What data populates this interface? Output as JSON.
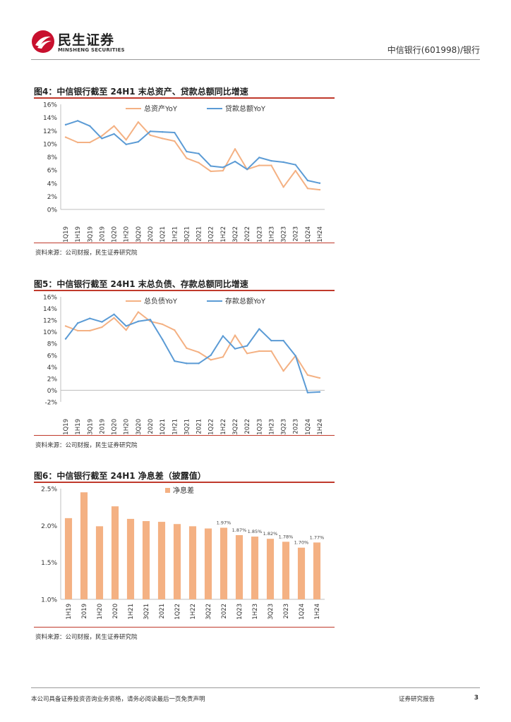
{
  "header": {
    "logo_cn": "民生证券",
    "logo_en": "MINSHENG SECURITIES",
    "report_name": "中信银行(601998)/银行"
  },
  "colors": {
    "orange": "#f4b183",
    "blue": "#5b9bd5",
    "bar": "#f4b183",
    "rule": "#c0392b"
  },
  "figures": [
    {
      "title": "图4：中信银行截至 24H1 末总资产、贷款总额同比增速",
      "source": "资料来源：公司财报，民生证券研究院"
    },
    {
      "title": "图5：中信银行截至 24H1 末总负债、存款总额同比增速",
      "source": "资料来源：公司财报，民生证券研究院"
    },
    {
      "title": "图6：中信银行截至 24H1 净息差（披露值）",
      "source": "资料来源：公司财报，民生证券研究院"
    }
  ],
  "chart_data": [
    {
      "type": "line",
      "title": "图4：中信银行截至 24H1 末总资产、贷款总额同比增速",
      "categories": [
        "1Q19",
        "1H19",
        "3Q19",
        "2019",
        "1Q20",
        "1H20",
        "3Q20",
        "2020",
        "1Q21",
        "1H21",
        "3Q21",
        "2021",
        "1Q22",
        "1H22",
        "3Q22",
        "2022",
        "1Q23",
        "1H23",
        "3Q23",
        "2023",
        "1Q24",
        "1H24"
      ],
      "y_ticks": [
        "0%",
        "2%",
        "4%",
        "6%",
        "8%",
        "10%",
        "12%",
        "14%",
        "16%"
      ],
      "ylim": [
        0,
        16
      ],
      "legend_position": "top",
      "series": [
        {
          "name": "总资产YoY",
          "color": "#f4b183",
          "values": [
            11.0,
            10.2,
            10.2,
            11.2,
            12.7,
            10.6,
            13.3,
            11.3,
            10.8,
            10.4,
            7.8,
            7.1,
            5.8,
            5.9,
            9.2,
            6.1,
            6.7,
            6.7,
            3.4,
            5.9,
            3.2,
            3.0
          ]
        },
        {
          "name": "贷款总额YoY",
          "color": "#5b9bd5",
          "values": [
            12.9,
            13.5,
            12.7,
            10.8,
            11.5,
            9.9,
            10.3,
            11.9,
            11.8,
            11.7,
            8.8,
            8.5,
            6.6,
            6.4,
            7.3,
            6.1,
            7.9,
            7.4,
            7.2,
            6.8,
            4.4,
            4.0
          ]
        }
      ]
    },
    {
      "type": "line",
      "title": "图5：中信银行截至 24H1 末总负债、存款总额同比增速",
      "categories": [
        "1Q19",
        "1H19",
        "3Q19",
        "2019",
        "1Q20",
        "1H20",
        "3Q20",
        "2020",
        "1Q21",
        "1H21",
        "3Q21",
        "2021",
        "1Q22",
        "1H22",
        "3Q22",
        "2022",
        "1Q23",
        "1H23",
        "3Q23",
        "2023",
        "1Q24",
        "1H24"
      ],
      "y_ticks": [
        "-2%",
        "0%",
        "2%",
        "4%",
        "6%",
        "8%",
        "10%",
        "12%",
        "14%",
        "16%"
      ],
      "ylim": [
        -2,
        16
      ],
      "legend_position": "top",
      "series": [
        {
          "name": "总负债YoY",
          "color": "#f4b183",
          "values": [
            11.0,
            10.2,
            10.2,
            10.8,
            12.4,
            10.3,
            13.4,
            11.8,
            11.3,
            10.3,
            7.2,
            6.5,
            5.2,
            5.7,
            9.4,
            6.3,
            6.7,
            6.7,
            3.3,
            5.9,
            2.6,
            2.1
          ]
        },
        {
          "name": "存款总额YoY",
          "color": "#5b9bd5",
          "values": [
            8.8,
            11.5,
            12.3,
            11.7,
            13.0,
            11.0,
            11.8,
            12.1,
            8.7,
            5.0,
            4.6,
            4.6,
            6.0,
            9.3,
            7.1,
            7.6,
            10.5,
            8.5,
            8.5,
            5.9,
            -0.4,
            -0.3
          ]
        }
      ]
    },
    {
      "type": "bar",
      "title": "图6：中信银行截至 24H1 净息差（披露值）",
      "categories": [
        "1H19",
        "2019",
        "1H20",
        "2020",
        "1H21",
        "3Q21",
        "2021",
        "1Q22",
        "1H22",
        "3Q22",
        "2022",
        "1Q23",
        "1H23",
        "3Q23",
        "2023",
        "1Q24",
        "1H24"
      ],
      "y_ticks": [
        "1.0%",
        "1.5%",
        "2.0%",
        "2.5%"
      ],
      "ylim": [
        1.0,
        2.5
      ],
      "legend_position": "top",
      "series": [
        {
          "name": "净息差",
          "color": "#f4b183",
          "values": [
            2.1,
            2.45,
            1.99,
            2.26,
            2.09,
            2.06,
            2.05,
            2.02,
            1.99,
            1.96,
            1.97,
            1.87,
            1.85,
            1.82,
            1.78,
            1.7,
            1.77
          ]
        }
      ],
      "data_labels": [
        "",
        "",
        "",
        "",
        "",
        "",
        "",
        "",
        "",
        "",
        "1.97%",
        "1.87%",
        "1.85%",
        "1.82%",
        "1.78%",
        "1.70%",
        "1.77%"
      ]
    }
  ],
  "footer": {
    "disclaimer": "本公司具备证券投资咨询业务资格，请务必阅读最后一页免责声明",
    "report_type": "证券研究报告",
    "page_number": "3"
  }
}
